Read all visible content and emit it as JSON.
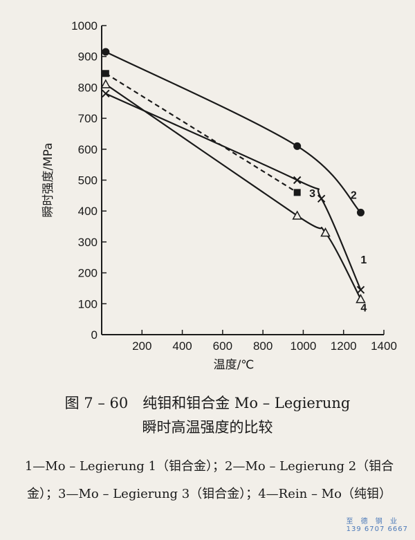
{
  "chart_data": {
    "type": "line",
    "xlabel": "温度/℃",
    "ylabel": "瞬时强度/MPa",
    "xlim": [
      0,
      1400
    ],
    "ylim": [
      0,
      1000
    ],
    "xticks": [
      "200",
      "400",
      "600",
      "800",
      "1000",
      "1200",
      "1400"
    ],
    "yticks": [
      "0",
      "100",
      "200",
      "300",
      "400",
      "500",
      "600",
      "700",
      "800",
      "900",
      "1000"
    ],
    "grid": false,
    "legend": "none",
    "series": [
      {
        "label": "1",
        "marker": "x",
        "line": "solid",
        "x": [
          20,
          970,
          1090,
          1285
        ],
        "y": [
          780,
          500,
          440,
          145
        ]
      },
      {
        "label": "2",
        "marker": "filled-circle",
        "line": "solid",
        "x": [
          20,
          970,
          1285
        ],
        "y": [
          915,
          610,
          395
        ]
      },
      {
        "label": "3",
        "marker": "filled-square",
        "line": "dashed",
        "x": [
          20,
          970
        ],
        "y": [
          845,
          460
        ]
      },
      {
        "label": "4",
        "marker": "open-triangle",
        "line": "solid",
        "x": [
          20,
          970,
          1110,
          1285
        ],
        "y": [
          810,
          385,
          330,
          115
        ]
      }
    ]
  },
  "caption": {
    "title": "图 7 – 60　纯钼和钼合金 Mo – Legierung",
    "subtitle": "瞬时高温强度的比较",
    "notes": "1—Mo – Legierung 1（钼合金）；2—Mo – Legierung 2（钼合金）；3—Mo – Legierung 3（钼合金）；4—Rein – Mo（纯钼）"
  },
  "watermark": {
    "line1": "至 德 钢 业",
    "line2": "139 6707 6667"
  }
}
